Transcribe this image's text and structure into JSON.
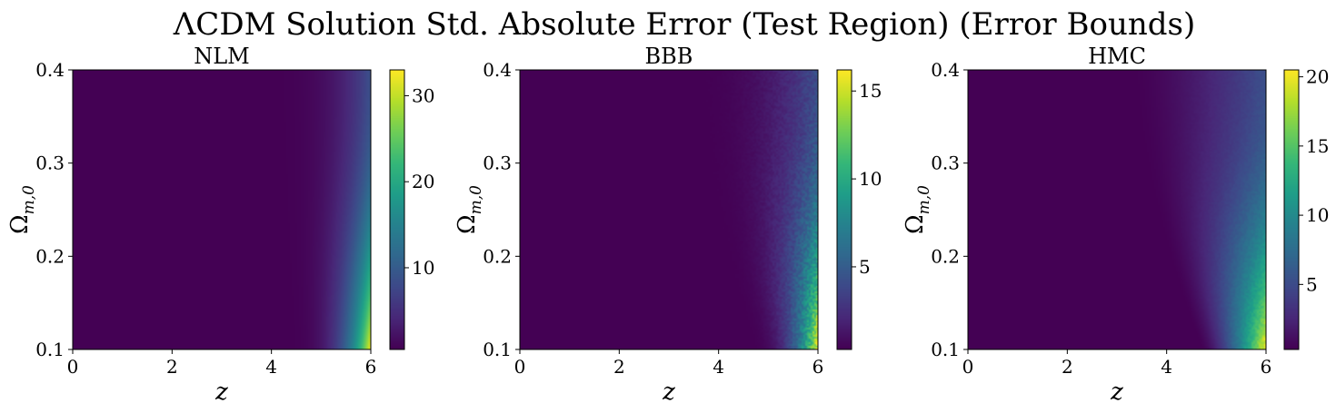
{
  "figure": {
    "title": "ΛCDM Solution Std. Absolute Error (Test Region) (Error Bounds)"
  },
  "colormap": "viridis",
  "viridis_stops": [
    "#440154",
    "#482878",
    "#3e4989",
    "#31688e",
    "#26828e",
    "#1f9e89",
    "#35b779",
    "#6ece58",
    "#b5de2b",
    "#fde725"
  ],
  "chart_data": [
    {
      "type": "heatmap",
      "title": "NLM",
      "xlabel": "z",
      "ylabel": "Ω_{m,0}",
      "ylabel_display": {
        "main": "Ω",
        "sub": "m,0"
      },
      "xlim": [
        0,
        6
      ],
      "ylim": [
        0.1,
        0.4
      ],
      "xticks": [
        0,
        2,
        4,
        6
      ],
      "xtick_labels": [
        "0",
        "2",
        "4",
        "6"
      ],
      "yticks": [
        0.1,
        0.2,
        0.3,
        0.4
      ],
      "ytick_labels": [
        "0.1",
        "0.2",
        "0.3",
        "0.4"
      ],
      "colorbar": {
        "min": 0.5,
        "max": 33,
        "ticks": [
          10,
          20,
          30
        ],
        "tick_labels": [
          "10",
          "20",
          "30"
        ]
      },
      "field": {
        "peak": 33,
        "exponent": 3.5,
        "boundary": {
          "z_at_omega_max": 3.7,
          "z_at_omega_min": 4.2,
          "curvature": 0.25
        },
        "noise": 0
      }
    },
    {
      "type": "heatmap",
      "title": "BBB",
      "xlabel": "z",
      "ylabel": "Ω_{m,0}",
      "ylabel_display": {
        "main": "Ω",
        "sub": "m,0"
      },
      "xlim": [
        0,
        6
      ],
      "ylim": [
        0.1,
        0.4
      ],
      "xticks": [
        0,
        2,
        4,
        6
      ],
      "xtick_labels": [
        "0",
        "2",
        "4",
        "6"
      ],
      "yticks": [
        0.1,
        0.2,
        0.3,
        0.4
      ],
      "ytick_labels": [
        "0.1",
        "0.2",
        "0.3",
        "0.4"
      ],
      "colorbar": {
        "min": 0.3,
        "max": 16.2,
        "ticks": [
          5,
          10,
          15
        ],
        "tick_labels": [
          "5",
          "10",
          "15"
        ]
      },
      "field": {
        "peak": 16.2,
        "exponent": 3.0,
        "boundary": {
          "z_at_omega_max": 3.2,
          "z_at_omega_min": 4.6,
          "curvature": 0.5
        },
        "noise": 0.4
      }
    },
    {
      "type": "heatmap",
      "title": "HMC",
      "xlabel": "z",
      "ylabel": "Ω_{m,0}",
      "ylabel_display": {
        "main": "Ω",
        "sub": "m,0"
      },
      "xlim": [
        0,
        6
      ],
      "ylim": [
        0.1,
        0.4
      ],
      "xticks": [
        0,
        2,
        4,
        6
      ],
      "xtick_labels": [
        "0",
        "2",
        "4",
        "6"
      ],
      "yticks": [
        0.1,
        0.2,
        0.3,
        0.4
      ],
      "ytick_labels": [
        "0.1",
        "0.2",
        "0.3",
        "0.4"
      ],
      "colorbar": {
        "min": 0.3,
        "max": 20.5,
        "ticks": [
          5,
          10,
          15,
          20
        ],
        "tick_labels": [
          "5",
          "10",
          "15",
          "20"
        ]
      },
      "field": {
        "peak": 20.5,
        "exponent": 1.6,
        "boundary": {
          "z_at_omega_max": 3.3,
          "z_at_omega_min": 4.7,
          "curvature": 0.55
        },
        "noise": 0.12
      }
    }
  ]
}
